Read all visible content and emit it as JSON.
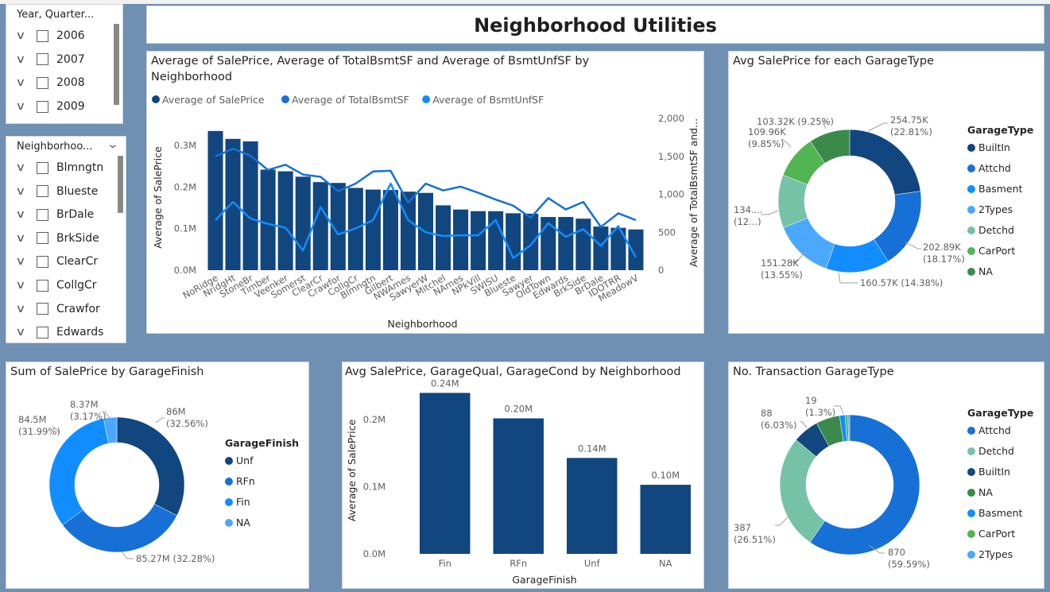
{
  "page_title": "Neighborhood Utilities",
  "colors": {
    "darkblue": "#12467e",
    "blue": "#1670d6",
    "midblue": "#118dff",
    "lightblue": "#4ba8ff",
    "teal": "#76c2a6",
    "green": "#52b553",
    "darkgreen": "#3b8a4c"
  },
  "slicer_year": {
    "title": "Year, Quarter...",
    "items": [
      "2006",
      "2007",
      "2008",
      "2009"
    ]
  },
  "slicer_neighborhood": {
    "title": "Neighborhoo...",
    "items": [
      "Blmngtn",
      "Blueste",
      "BrDale",
      "BrkSide",
      "ClearCr",
      "CollgCr",
      "Crawfor",
      "Edwards"
    ]
  },
  "chart_data": [
    {
      "id": "neighborhood-combo",
      "type": "bar+line",
      "title": "Average of SalePrice, Average of TotalBsmtSF and Average of BsmtUnfSF by Neighborhood",
      "title_lines": [
        "Average of SalePrice, Average of TotalBsmtSF and Average of BsmtUnfSF by",
        "Neighborhood"
      ],
      "legend": [
        "Average of SalePrice",
        "Average of TotalBsmtSF",
        "Average of BsmtUnfSF"
      ],
      "xlabel": "Neighborhood",
      "ylabel": "Average of SalePrice",
      "y2label": "Average of TotalBsmtSF and...",
      "ylim": [
        0,
        350000
      ],
      "y2lim": [
        0,
        2000
      ],
      "yticks": [
        {
          "v": 0,
          "label": "0.0M"
        },
        {
          "v": 100000,
          "label": "0.1M"
        },
        {
          "v": 200000,
          "label": "0.2M"
        },
        {
          "v": 300000,
          "label": "0.3M"
        }
      ],
      "y2ticks": [
        {
          "v": 0,
          "label": "0"
        },
        {
          "v": 500,
          "label": "500"
        },
        {
          "v": 1000,
          "label": "1,000"
        },
        {
          "v": 1500,
          "label": "1,500"
        },
        {
          "v": 2000,
          "label": "2,000"
        }
      ],
      "categories": [
        "NoRidge",
        "NridgHt",
        "StoneBr",
        "Timber",
        "Veenker",
        "Somerst",
        "ClearCr",
        "Crawfor",
        "CollgCr",
        "Blmngtn",
        "Gilbert",
        "NWAmes",
        "SawyerW",
        "Mitchel",
        "NAmes",
        "NPkVill",
        "SWISU",
        "Blueste",
        "Sawyer",
        "OldTown",
        "Edwards",
        "BrkSide",
        "BrDale",
        "IDOTRR",
        "MeadowV"
      ],
      "series": [
        {
          "name": "Average of SalePrice",
          "kind": "bar",
          "values": [
            335000,
            316000,
            310000,
            242000,
            238000,
            225000,
            212000,
            210000,
            198000,
            194000,
            193000,
            189000,
            186000,
            156000,
            146000,
            142000,
            142000,
            137000,
            136000,
            128000,
            128000,
            124000,
            105000,
            102000,
            98000
          ]
        },
        {
          "name": "Average of TotalBsmtSF",
          "kind": "line",
          "values": [
            1500,
            1600,
            1510,
            1320,
            1390,
            1260,
            1230,
            1040,
            1140,
            1300,
            1310,
            890,
            1140,
            1050,
            1100,
            1020,
            930,
            850,
            690,
            950,
            800,
            900,
            570,
            750,
            660
          ]
        },
        {
          "name": "Average of BsmtUnfSF",
          "kind": "line",
          "values": [
            660,
            900,
            680,
            610,
            560,
            260,
            830,
            470,
            550,
            660,
            1140,
            660,
            500,
            450,
            460,
            460,
            660,
            160,
            330,
            620,
            440,
            540,
            320,
            580,
            170
          ]
        }
      ]
    },
    {
      "id": "garagetype-avg-donut",
      "type": "pie",
      "title": "Avg SalePrice for each GarageType",
      "legend_title": "GarageType",
      "categories": [
        "BuiltIn",
        "Attchd",
        "Basment",
        "2Types",
        "Detchd",
        "CarPort",
        "NA"
      ],
      "values": [
        254750,
        202890,
        160570,
        151280,
        134000,
        109960,
        103320
      ],
      "labels": [
        [
          "254.75K",
          "(22.81%)"
        ],
        [
          "202.89K",
          "(18.17%)"
        ],
        [
          "160.57K (14.38%)"
        ],
        [
          "151.28K",
          "(13.55%)"
        ],
        [
          "134....",
          "(12...)"
        ],
        [
          "109.96K",
          "(9.85%)"
        ],
        [
          "103.32K (9.25%)"
        ]
      ]
    },
    {
      "id": "garagefinish-sum-donut",
      "type": "pie",
      "title": "Sum of SalePrice by GarageFinish",
      "legend_title": "GarageFinish",
      "categories": [
        "Unf",
        "RFn",
        "Fin",
        "NA"
      ],
      "values": [
        86000000,
        85270000,
        84500000,
        8370000
      ],
      "labels": [
        [
          "86M",
          "(32.56%)"
        ],
        [
          "85.27M (32.28%)"
        ],
        [
          "84.5M",
          "(31.99%)"
        ],
        [
          "8.37M",
          "(3.17%)"
        ]
      ]
    },
    {
      "id": "garagefinish-bar",
      "type": "bar",
      "title": "Avg SalePrice, GarageQual, GarageCond by Neighborhood",
      "xlabel": "GarageFinish",
      "ylabel": "Average of SalePrice",
      "ylim": [
        0,
        250000
      ],
      "yticks": [
        {
          "v": 0,
          "label": "0.0M"
        },
        {
          "v": 100000,
          "label": "0.1M"
        },
        {
          "v": 200000,
          "label": "0.2M"
        }
      ],
      "categories": [
        "Fin",
        "RFn",
        "Unf",
        "NA"
      ],
      "values": [
        240000,
        202000,
        143000,
        103000
      ],
      "data_labels": [
        "0.24M",
        "0.20M",
        "0.14M",
        "0.10M"
      ]
    },
    {
      "id": "garagetype-count-donut",
      "type": "pie",
      "title": "No. Transaction GarageType",
      "legend_title": "GarageType",
      "categories": [
        "Attchd",
        "Detchd",
        "BuiltIn",
        "NA",
        "Basment",
        "CarPort",
        "2Types"
      ],
      "values": [
        870,
        387,
        88,
        81,
        19,
        9,
        6
      ],
      "labels": [
        [
          "870",
          "(59.59%)"
        ],
        [
          "387",
          "(26.51%)"
        ],
        [
          "88",
          "(6.03%)"
        ],
        null,
        [
          "19",
          "(1.3%)"
        ],
        null,
        null
      ]
    }
  ]
}
